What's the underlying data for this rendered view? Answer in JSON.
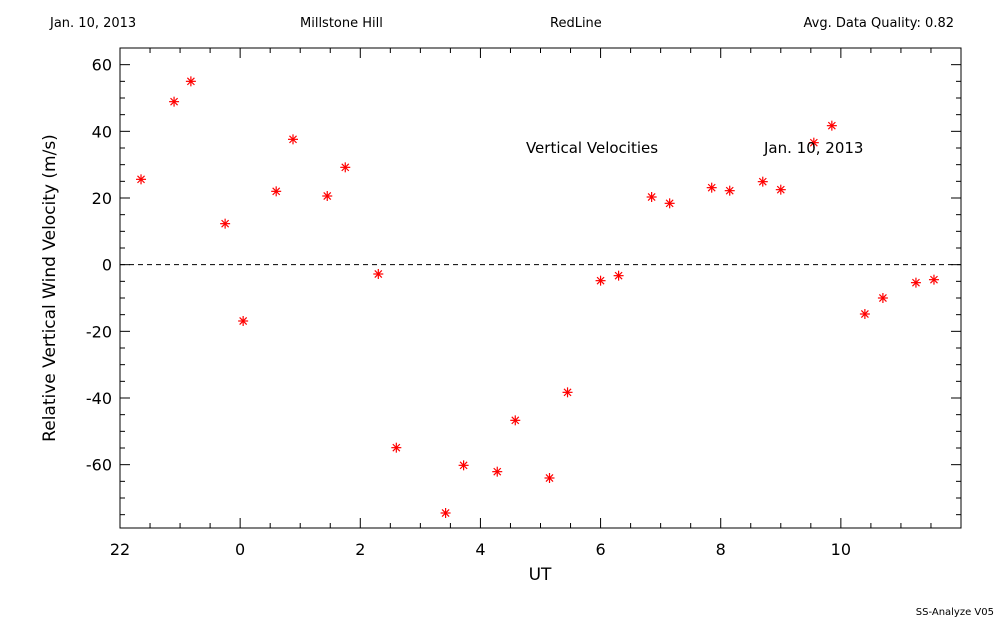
{
  "header": {
    "date": "Jan. 10, 2013",
    "site": "Millstone Hill",
    "instrument": "RedLine",
    "quality": "Avg. Data Quality: 0.82"
  },
  "footer": "SS-Analyze V05",
  "chart_data": {
    "type": "scatter",
    "title": "Vertical Velocities",
    "annotation_date": "Jan. 10, 2013",
    "xlabel": "UT",
    "ylabel": "Relative Vertical Wind Velocity (m/s)",
    "xlim": [
      -2,
      12
    ],
    "ylim": [
      -79,
      65
    ],
    "x_ticks": [
      22,
      0,
      2,
      4,
      6,
      8,
      10
    ],
    "y_ticks": [
      60,
      40,
      20,
      0,
      -20,
      -40,
      -60
    ],
    "zero_line": "dashed",
    "marker": "asterisk",
    "color": "#ff0000",
    "x": [
      -1.65,
      -1.1,
      -0.82,
      -0.25,
      0.05,
      0.6,
      0.88,
      1.45,
      1.75,
      2.3,
      2.6,
      3.42,
      3.72,
      4.28,
      4.58,
      5.15,
      5.45,
      6.0,
      6.3,
      6.85,
      7.15,
      7.85,
      8.15,
      8.7,
      9.0,
      9.55,
      9.85,
      10.4,
      10.7,
      11.25,
      11.55
    ],
    "y": [
      25.6,
      48.9,
      55.0,
      12.3,
      -16.9,
      22.0,
      37.6,
      20.6,
      29.2,
      -2.8,
      -54.9,
      -74.5,
      -60.2,
      -62.1,
      -46.7,
      -64.0,
      -38.3,
      -4.8,
      -3.3,
      20.3,
      18.4,
      23.1,
      22.2,
      24.9,
      22.5,
      36.6,
      41.7,
      -14.8,
      -10.0,
      -5.4,
      -4.5
    ]
  }
}
